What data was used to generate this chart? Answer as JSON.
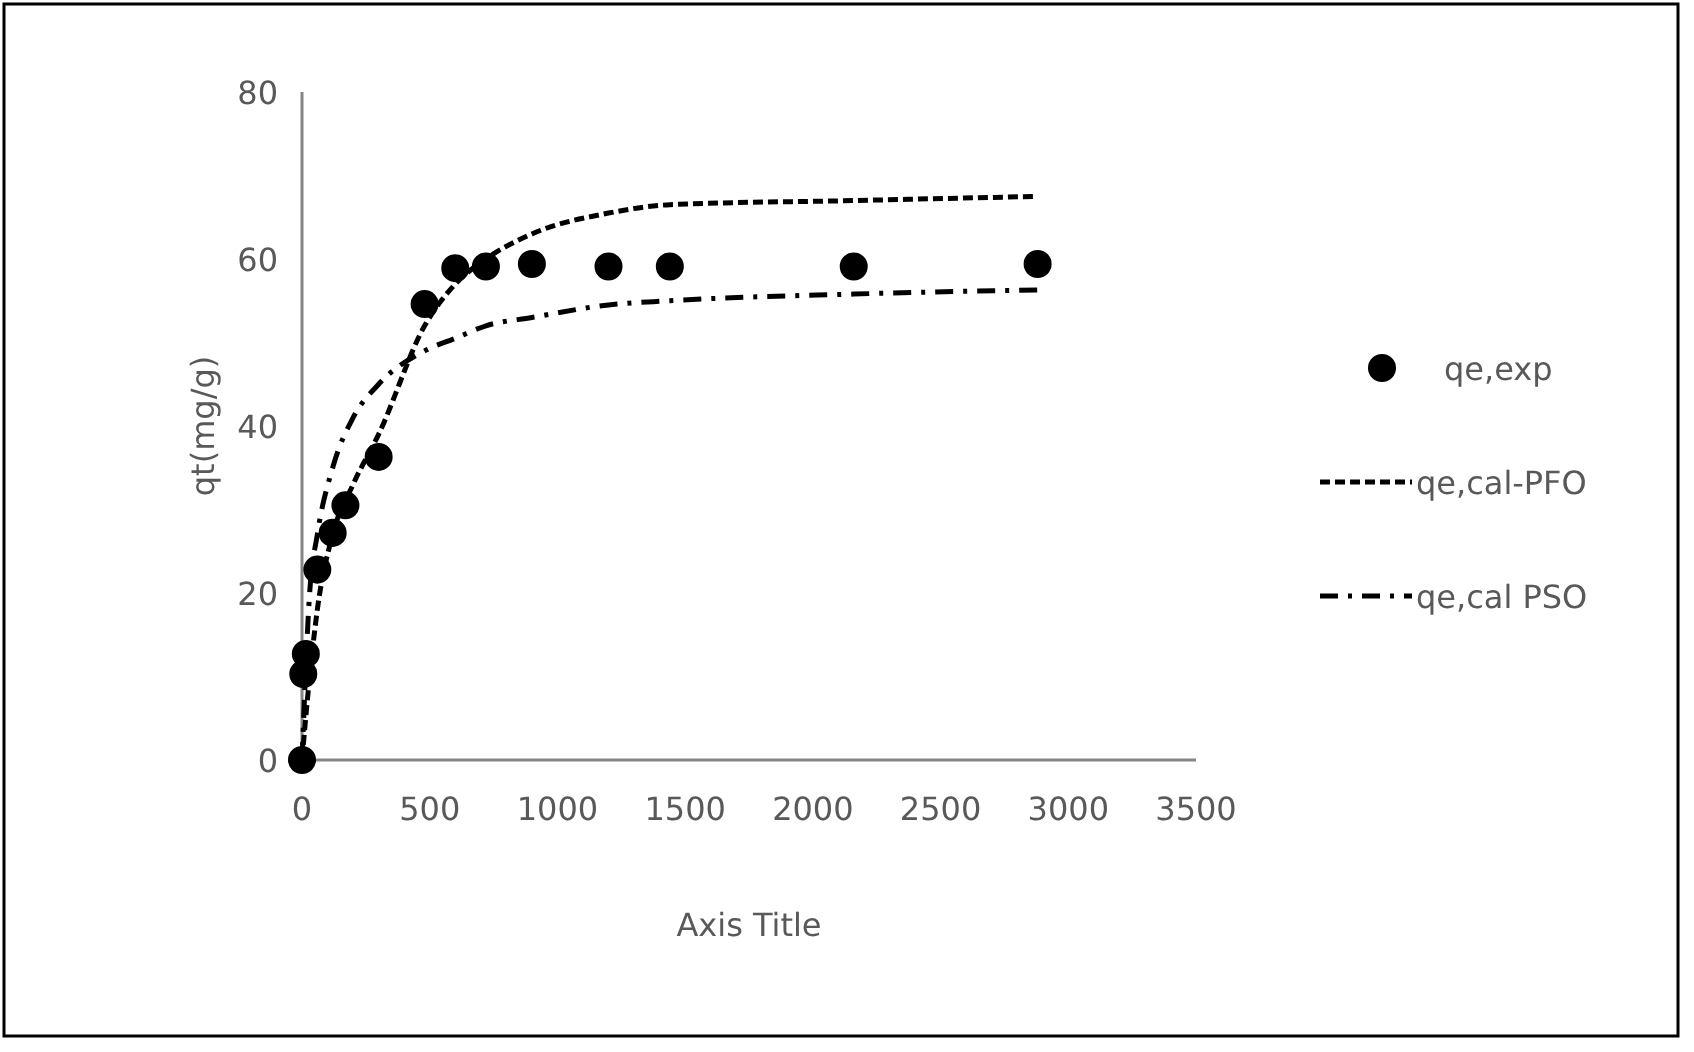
{
  "chart_data": {
    "type": "scatter",
    "xlabel": "Axis Title",
    "ylabel": "qt(mg/g)",
    "xlim": [
      0,
      3500
    ],
    "ylim": [
      0,
      80
    ],
    "xticks": [
      0,
      500,
      1000,
      1500,
      2000,
      2500,
      3000,
      3500
    ],
    "yticks": [
      0,
      20,
      40,
      60,
      80
    ],
    "grid": false,
    "legend": "right",
    "series": [
      {
        "name": "qe,exp",
        "marker": "circle",
        "color": "#000000",
        "x": [
          0,
          5,
          15,
          60,
          120,
          170,
          300,
          480,
          600,
          720,
          900,
          1200,
          1440,
          2160,
          2880
        ],
        "values": [
          0,
          10.3,
          12.7,
          22.8,
          27.2,
          30.5,
          36.3,
          54.6,
          58.9,
          59.1,
          59.4,
          59.1,
          59.1,
          59.1,
          59.4
        ]
      },
      {
        "name": "qe,cal-PFO",
        "type": "line",
        "line_style": "dashed",
        "color": "#000000",
        "x": [
          0,
          30,
          60,
          120,
          200,
          300,
          480,
          600,
          720,
          900,
          1200,
          1440,
          2160,
          2880
        ],
        "values": [
          0,
          10,
          18,
          27,
          33,
          39,
          52,
          57,
          60,
          63,
          65.5,
          66.5,
          67,
          67.5
        ]
      },
      {
        "name": "qe,cal PSO",
        "type": "line",
        "line_style": "dashdot",
        "color": "#000000",
        "x": [
          0,
          30,
          60,
          120,
          200,
          300,
          480,
          600,
          720,
          900,
          1200,
          1440,
          2160,
          2880
        ],
        "values": [
          0,
          20,
          27,
          35,
          41,
          45,
          49,
          50.5,
          52,
          53,
          54.5,
          55,
          55.8,
          56.3
        ]
      }
    ]
  }
}
